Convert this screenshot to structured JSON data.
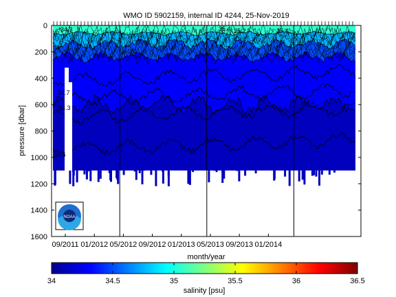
{
  "chart_data": {
    "type": "heatmap",
    "title": "WMO ID 5902159, internal ID 4244, 25-Nov-2019",
    "xlabel": "month/year",
    "ylabel": "pressure [dbar]",
    "x_tick_labels": [
      "09/2011",
      "01/2012",
      "05/2012",
      "09/2012",
      "01/2013",
      "05/2013",
      "09/2013",
      "01/2014"
    ],
    "y_ticks": [
      0,
      200,
      400,
      600,
      800,
      1000,
      1200,
      1400,
      1600
    ],
    "ylim": [
      0,
      1600
    ],
    "y_reversed": true,
    "year_boundaries": [
      "01/2012",
      "01/2013",
      "01/2014"
    ],
    "colorbar": {
      "label": "salinity [psu]",
      "range": [
        34,
        36.5
      ],
      "ticks": [
        "34",
        "34.5",
        "35",
        "35.5",
        "36",
        "36.5"
      ]
    },
    "layers": [
      {
        "salinity_range": [
          34.9,
          35.2
        ],
        "depth_top": 0,
        "depth_bottom": 60
      },
      {
        "salinity_range": [
          34.6,
          34.9
        ],
        "depth_top": 60,
        "depth_bottom": 140
      },
      {
        "salinity_range": [
          34.4,
          34.6
        ],
        "depth_top": 140,
        "depth_bottom": 240
      },
      {
        "salinity_range": [
          34.2,
          34.4
        ],
        "depth_top": 240,
        "depth_bottom": 600
      },
      {
        "salinity_range": [
          34.1,
          34.2
        ],
        "depth_top": 600,
        "depth_bottom": 1100
      }
    ],
    "max_profile_depth": 1100,
    "contour_labels": [
      "34.7",
      "34.3",
      "34.6",
      "35.4",
      "35.4",
      "35.2",
      "34.3",
      "34.4"
    ],
    "logo": "noaa-logo"
  }
}
